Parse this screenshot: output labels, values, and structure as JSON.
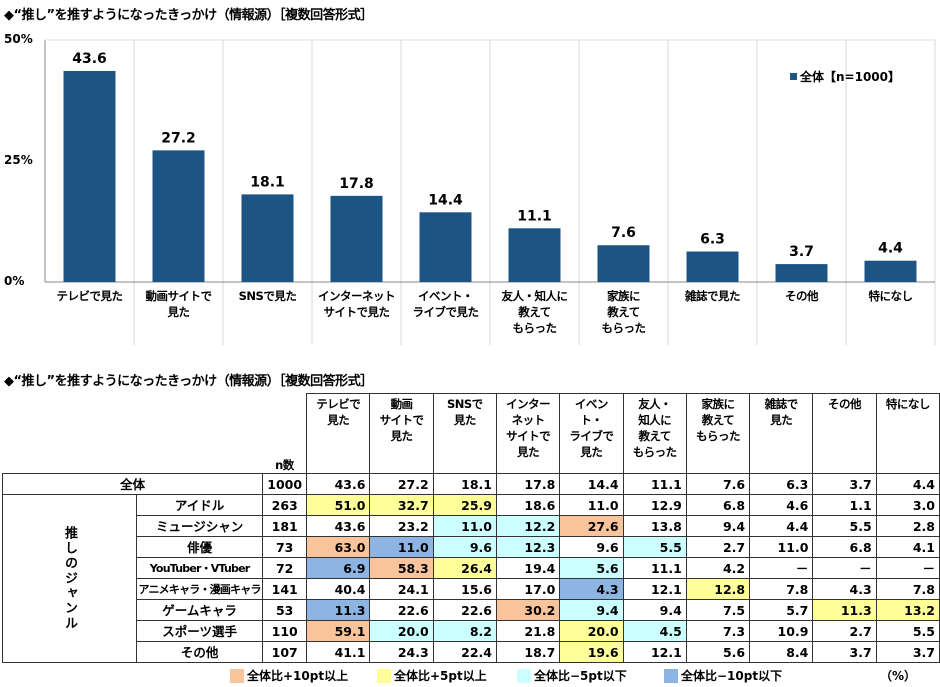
{
  "chart_title": "◆“推し”を推すようになったきっかけ（情報源）［複数回答形式］",
  "chart_data": {
    "type": "bar",
    "title": "◆“推し”を推すようになったきっかけ（情報源）［複数回答形式］",
    "categories": [
      "テレビで見た",
      "動画サイトで\n見た",
      "SNSで見た",
      "インターネット\nサイトで見た",
      "イベント・\nライブで見た",
      "友人・知人に\n教えて\nもらった",
      "家族に\n教えて\nもらった",
      "雑誌で見た",
      "その他",
      "特になし"
    ],
    "series": [
      {
        "name": "全体【n=1000】",
        "values": [
          43.6,
          27.2,
          18.1,
          17.8,
          14.4,
          11.1,
          7.6,
          6.3,
          3.7,
          4.4
        ],
        "color": "#1c5584"
      }
    ],
    "yticks": [
      "50%",
      "25%",
      "0%"
    ],
    "ylim": [
      0,
      50
    ],
    "legend": "top-right",
    "grid": "vertical category separators"
  },
  "table": {
    "title": "◆“推し”を推すようになったきっかけ（情報源）［複数回答形式］",
    "n_header": "n数",
    "group_label": "推しのジャンル",
    "columns": [
      "テレビで\n見た",
      "動画\nサイトで\n見た",
      "SNSで\n見た",
      "インター\nネット\nサイトで\n見た",
      "イベント・\nライブで\n見た",
      "友人・\n知人に\n教えて\nもらった",
      "家族に\n教えて\nもらった",
      "雑誌で\n見た",
      "その他",
      "特になし"
    ],
    "total": {
      "label": "全体",
      "n": "1000",
      "values": [
        "43.6",
        "27.2",
        "18.1",
        "17.8",
        "14.4",
        "11.1",
        "7.6",
        "6.3",
        "3.7",
        "4.4"
      ]
    },
    "rows": [
      {
        "label": "アイドル",
        "n": "263",
        "values": [
          "51.0",
          "32.7",
          "25.9",
          "18.6",
          "11.0",
          "12.9",
          "6.8",
          "4.6",
          "1.1",
          "3.0"
        ],
        "hl": [
          "y",
          "y",
          "y",
          "",
          "",
          "",
          "",
          "",
          "",
          ""
        ]
      },
      {
        "label": "ミュージシャン",
        "n": "181",
        "values": [
          "43.6",
          "23.2",
          "11.0",
          "12.2",
          "27.6",
          "13.8",
          "9.4",
          "4.4",
          "5.5",
          "2.8"
        ],
        "hl": [
          "",
          "",
          "c",
          "c",
          "o",
          "",
          "",
          "",
          "",
          ""
        ]
      },
      {
        "label": "俳優",
        "n": "73",
        "values": [
          "63.0",
          "11.0",
          "9.6",
          "12.3",
          "9.6",
          "5.5",
          "2.7",
          "11.0",
          "6.8",
          "4.1"
        ],
        "hl": [
          "o",
          "b",
          "c",
          "c",
          "",
          "c",
          "",
          "",
          "",
          ""
        ]
      },
      {
        "label": "YouTuber・VTuber",
        "n": "72",
        "values": [
          "6.9",
          "58.3",
          "26.4",
          "19.4",
          "5.6",
          "11.1",
          "4.2",
          "－",
          "－",
          "－"
        ],
        "hl": [
          "b",
          "o",
          "y",
          "",
          "c",
          "",
          "",
          "",
          "",
          ""
        ]
      },
      {
        "label": "アニメキャラ・漫画キャラ",
        "n": "141",
        "values": [
          "40.4",
          "24.1",
          "15.6",
          "17.0",
          "4.3",
          "12.1",
          "12.8",
          "7.8",
          "4.3",
          "7.8"
        ],
        "hl": [
          "",
          "",
          "",
          "",
          "b",
          "",
          "y",
          "",
          "",
          ""
        ]
      },
      {
        "label": "ゲームキャラ",
        "n": "53",
        "values": [
          "11.3",
          "22.6",
          "22.6",
          "30.2",
          "9.4",
          "9.4",
          "7.5",
          "5.7",
          "11.3",
          "13.2"
        ],
        "hl": [
          "b",
          "",
          "",
          "o",
          "c",
          "",
          "",
          "",
          "y",
          "y"
        ]
      },
      {
        "label": "スポーツ選手",
        "n": "110",
        "values": [
          "59.1",
          "20.0",
          "8.2",
          "21.8",
          "20.0",
          "4.5",
          "7.3",
          "10.9",
          "2.7",
          "5.5"
        ],
        "hl": [
          "o",
          "c",
          "c",
          "",
          "y",
          "c",
          "",
          "",
          "",
          ""
        ]
      },
      {
        "label": "その他",
        "n": "107",
        "values": [
          "41.1",
          "24.3",
          "22.4",
          "18.7",
          "19.6",
          "12.1",
          "5.6",
          "8.4",
          "3.7",
          "3.7"
        ],
        "hl": [
          "",
          "",
          "",
          "",
          "y",
          "",
          "",
          "",
          "",
          ""
        ]
      }
    ],
    "legend": [
      {
        "key": "o",
        "label": "全体比+10pt以上",
        "color": "#f9c49c"
      },
      {
        "key": "y",
        "label": "全体比+5pt以上",
        "color": "#ffff99"
      },
      {
        "key": "c",
        "label": "全体比−5pt以下",
        "color": "#ccffff"
      },
      {
        "key": "b",
        "label": "全体比−10pt以下",
        "color": "#8db4e2"
      }
    ],
    "unit": "（%）"
  }
}
